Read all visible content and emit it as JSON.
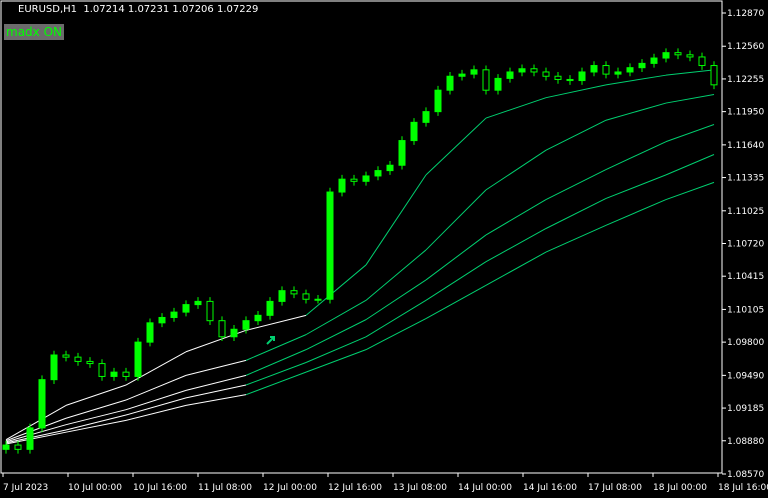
{
  "header": {
    "symbol_line": "EURUSD,H1  1.07214 1.07231 1.07206 1.07229"
  },
  "indicator_badge": "madx ON",
  "colors": {
    "background": "#000000",
    "candle": "#00ff00",
    "ma_green": "#00d070",
    "ma_white": "#ffffff",
    "axis": "#ffffff"
  },
  "chart_data": {
    "type": "candlestick",
    "ylim": [
      1.0857,
      1.1287
    ],
    "y_ticks": [
      "1.12870",
      "1.12560",
      "1.12255",
      "1.11950",
      "1.11640",
      "1.11335",
      "1.11025",
      "1.10720",
      "1.10415",
      "1.10105",
      "1.09800",
      "1.09490",
      "1.09185",
      "1.08880",
      "1.08570"
    ],
    "x_ticks": [
      "7 Jul 2023",
      "10 Jul 00:00",
      "10 Jul 16:00",
      "11 Jul 08:00",
      "12 Jul 00:00",
      "12 Jul 16:00",
      "13 Jul 08:00",
      "14 Jul 00:00",
      "14 Jul 16:00",
      "17 Jul 08:00",
      "18 Jul 00:00",
      "18 Jul 16:00"
    ],
    "close": [
      1.0884,
      1.088,
      1.09,
      1.0945,
      1.0968,
      1.0966,
      1.0962,
      1.096,
      1.0948,
      1.0952,
      1.0948,
      1.098,
      1.0998,
      1.1003,
      1.1008,
      1.1015,
      1.1018,
      1.1,
      1.0985,
      1.0992,
      1.1,
      1.1005,
      1.1018,
      1.1028,
      1.1025,
      1.102,
      1.102,
      1.112,
      1.1132,
      1.113,
      1.1135,
      1.114,
      1.1145,
      1.1168,
      1.1185,
      1.1195,
      1.1215,
      1.1228,
      1.123,
      1.1234,
      1.1215,
      1.1226,
      1.1232,
      1.1235,
      1.1232,
      1.1228,
      1.1225,
      1.1224,
      1.1232,
      1.1238,
      1.123,
      1.1232,
      1.1236,
      1.124,
      1.1245,
      1.125,
      1.1248,
      1.1246,
      1.1238,
      1.122
    ],
    "ma_sample_bars": [
      0,
      5,
      10,
      15,
      20,
      25,
      30,
      35,
      40,
      45,
      50,
      55,
      59
    ],
    "moving_averages": [
      {
        "values": [
          1.0889,
          1.0921,
          1.094,
          1.0971,
          1.0991,
          1.1005,
          1.1052,
          1.1136,
          1.1189,
          1.1208,
          1.122,
          1.1229,
          1.1234
        ],
        "white_until": 5
      },
      {
        "values": [
          1.0888,
          1.0909,
          1.0926,
          1.0949,
          1.0963,
          1.0987,
          1.1019,
          1.1066,
          1.1122,
          1.1159,
          1.1187,
          1.1203,
          1.1211
        ],
        "white_until": 4
      },
      {
        "values": [
          1.0887,
          1.0903,
          1.0917,
          1.0935,
          1.0949,
          1.0973,
          1.1001,
          1.1038,
          1.108,
          1.1113,
          1.1141,
          1.1167,
          1.1183
        ],
        "white_until": 4
      },
      {
        "values": [
          1.0886,
          1.0898,
          1.0912,
          1.0928,
          1.094,
          1.0961,
          1.0985,
          1.1019,
          1.1055,
          1.1086,
          1.1114,
          1.1136,
          1.1155
        ],
        "white_until": 4
      },
      {
        "values": [
          1.0885,
          1.0896,
          1.0907,
          1.0921,
          1.0931,
          1.0952,
          1.0973,
          1.1002,
          1.1033,
          1.1064,
          1.1089,
          1.1113,
          1.1129
        ],
        "white_until": 4
      }
    ],
    "signal_arrow": {
      "bar": 22,
      "price": 1.0982,
      "direction": "up-right"
    }
  }
}
